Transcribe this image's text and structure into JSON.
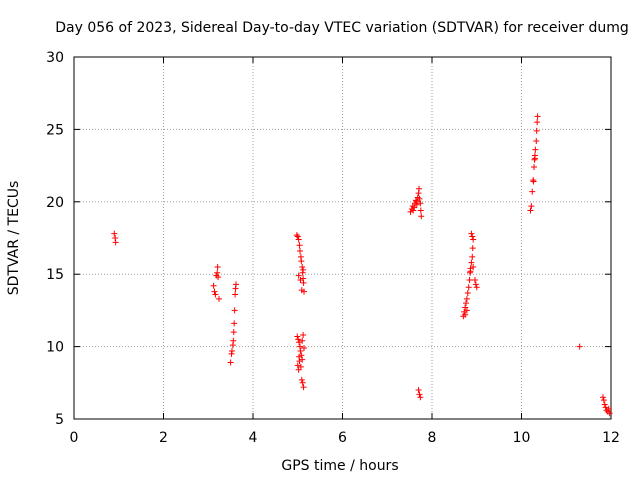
{
  "chart_data": {
    "type": "scatter",
    "title": "Day 056 of 2023, Sidereal Day-to-day VTEC variation (SDTVAR) for receiver dumg",
    "xlabel": "GPS time / hours",
    "ylabel": "SDTVAR / TECUs",
    "xlim": [
      0,
      12
    ],
    "ylim": [
      5,
      30
    ],
    "xticks": [
      0,
      2,
      4,
      6,
      8,
      10,
      12
    ],
    "yticks": [
      5,
      10,
      15,
      20,
      25,
      30
    ],
    "grid": true,
    "marker": "+",
    "series": [
      {
        "name": "SDTVAR",
        "color": "#ff0000",
        "points": [
          [
            0.9,
            17.8
          ],
          [
            0.92,
            17.5
          ],
          [
            0.93,
            17.2
          ],
          [
            3.12,
            14.2
          ],
          [
            3.14,
            13.8
          ],
          [
            3.16,
            13.6
          ],
          [
            3.18,
            14.9
          ],
          [
            3.2,
            15.1
          ],
          [
            3.21,
            15.5
          ],
          [
            3.22,
            14.8
          ],
          [
            3.24,
            13.3
          ],
          [
            3.5,
            8.9
          ],
          [
            3.52,
            9.5
          ],
          [
            3.53,
            9.7
          ],
          [
            3.55,
            10.1
          ],
          [
            3.56,
            10.4
          ],
          [
            3.57,
            11.0
          ],
          [
            3.58,
            11.6
          ],
          [
            3.59,
            12.5
          ],
          [
            3.6,
            13.6
          ],
          [
            3.61,
            14.0
          ],
          [
            3.62,
            14.3
          ],
          [
            4.98,
            17.7
          ],
          [
            5.0,
            17.6
          ],
          [
            5.02,
            17.4
          ],
          [
            5.04,
            17.0
          ],
          [
            5.05,
            16.6
          ],
          [
            5.07,
            16.2
          ],
          [
            5.08,
            15.9
          ],
          [
            5.1,
            15.5
          ],
          [
            5.11,
            15.1
          ],
          [
            5.12,
            14.7
          ],
          [
            5.13,
            14.4
          ],
          [
            5.02,
            14.9
          ],
          [
            5.06,
            14.6
          ],
          [
            5.09,
            13.9
          ],
          [
            5.14,
            13.8
          ],
          [
            5.12,
            15.3
          ],
          [
            4.99,
            10.7
          ],
          [
            5.01,
            10.5
          ],
          [
            5.03,
            10.3
          ],
          [
            5.05,
            10.0
          ],
          [
            5.06,
            9.7
          ],
          [
            5.08,
            9.4
          ],
          [
            5.1,
            9.1
          ],
          [
            5.0,
            8.7
          ],
          [
            5.02,
            8.4
          ],
          [
            5.04,
            9.0
          ],
          [
            5.07,
            8.6
          ],
          [
            5.09,
            7.7
          ],
          [
            5.11,
            7.5
          ],
          [
            5.13,
            7.2
          ],
          [
            5.12,
            10.8
          ],
          [
            5.1,
            10.4
          ],
          [
            5.14,
            9.9
          ],
          [
            5.03,
            9.3
          ],
          [
            7.52,
            19.3
          ],
          [
            7.55,
            19.5
          ],
          [
            7.57,
            19.7
          ],
          [
            7.6,
            19.6
          ],
          [
            7.62,
            19.9
          ],
          [
            7.64,
            20.1
          ],
          [
            7.66,
            19.8
          ],
          [
            7.68,
            20.3
          ],
          [
            7.7,
            20.6
          ],
          [
            7.71,
            20.9
          ],
          [
            7.72,
            20.2
          ],
          [
            7.74,
            19.9
          ],
          [
            7.75,
            19.4
          ],
          [
            7.76,
            19.0
          ],
          [
            7.58,
            19.4
          ],
          [
            7.66,
            20.0
          ],
          [
            7.7,
            7.0
          ],
          [
            7.72,
            6.7
          ],
          [
            7.74,
            6.5
          ],
          [
            8.7,
            12.1
          ],
          [
            8.72,
            12.4
          ],
          [
            8.74,
            12.7
          ],
          [
            8.76,
            13.0
          ],
          [
            8.78,
            13.3
          ],
          [
            8.8,
            13.7
          ],
          [
            8.82,
            14.1
          ],
          [
            8.84,
            14.6
          ],
          [
            8.85,
            15.1
          ],
          [
            8.86,
            15.4
          ],
          [
            8.88,
            15.8
          ],
          [
            8.9,
            16.2
          ],
          [
            8.91,
            16.8
          ],
          [
            8.92,
            17.4
          ],
          [
            8.88,
            17.8
          ],
          [
            8.9,
            17.6
          ],
          [
            8.96,
            14.6
          ],
          [
            8.98,
            14.3
          ],
          [
            9.0,
            14.1
          ],
          [
            8.74,
            12.2
          ],
          [
            8.78,
            12.5
          ],
          [
            8.86,
            15.2
          ],
          [
            8.92,
            15.5
          ],
          [
            10.2,
            19.4
          ],
          [
            10.22,
            19.7
          ],
          [
            10.24,
            20.7
          ],
          [
            10.26,
            21.5
          ],
          [
            10.28,
            22.4
          ],
          [
            10.29,
            22.9
          ],
          [
            10.3,
            23.2
          ],
          [
            10.31,
            23.6
          ],
          [
            10.33,
            24.2
          ],
          [
            10.34,
            24.9
          ],
          [
            10.35,
            25.5
          ],
          [
            10.36,
            25.9
          ],
          [
            10.27,
            21.4
          ],
          [
            10.3,
            23.0
          ],
          [
            11.3,
            10.0
          ],
          [
            11.82,
            6.5
          ],
          [
            11.84,
            6.3
          ],
          [
            11.86,
            6.0
          ],
          [
            11.88,
            5.8
          ],
          [
            11.9,
            5.6
          ],
          [
            11.93,
            5.5
          ],
          [
            11.95,
            5.7
          ],
          [
            11.97,
            5.4
          ]
        ]
      }
    ]
  }
}
